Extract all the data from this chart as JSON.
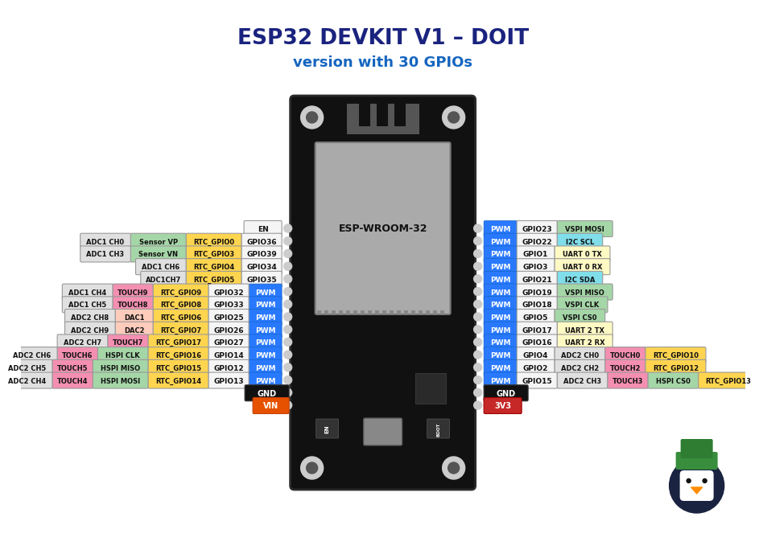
{
  "title": "ESP32 DEVKIT V1 – DOIT",
  "subtitle": "version with 30 GPIOs",
  "title_color": "#1a237e",
  "subtitle_color": "#1565c0",
  "bg_color": "#ffffff",
  "board_color": "#111111",
  "pwm_color": "#2979ff",
  "left_pins": [
    {
      "row": 0,
      "gpio": "EN",
      "tags": [],
      "tag_colors": [],
      "pwm": false
    },
    {
      "row": 1,
      "gpio": "GPIO36",
      "tags": [
        "RTC_GPIO0",
        "Sensor VP",
        "ADC1 CH0"
      ],
      "tag_colors": [
        "#ffd54f",
        "#a5d6a7",
        "#e0e0e0"
      ],
      "pwm": false
    },
    {
      "row": 2,
      "gpio": "GPIO39",
      "tags": [
        "RTC_GPIO3",
        "Sensor VN",
        "ADC1 CH3"
      ],
      "tag_colors": [
        "#ffd54f",
        "#a5d6a7",
        "#e0e0e0"
      ],
      "pwm": false
    },
    {
      "row": 3,
      "gpio": "GPIO34",
      "tags": [
        "RTC_GPIO4",
        "ADC1 CH6"
      ],
      "tag_colors": [
        "#ffd54f",
        "#e0e0e0"
      ],
      "pwm": false
    },
    {
      "row": 4,
      "gpio": "GPIO35",
      "tags": [
        "RTC_GPIO5",
        "ADC1CH7"
      ],
      "tag_colors": [
        "#ffd54f",
        "#e0e0e0"
      ],
      "pwm": false
    },
    {
      "row": 5,
      "gpio": "GPIO32",
      "tags": [
        "RTC_GPIO9",
        "TOUCH9",
        "ADC1 CH4"
      ],
      "tag_colors": [
        "#ffd54f",
        "#f48fb1",
        "#e0e0e0"
      ],
      "pwm": true
    },
    {
      "row": 6,
      "gpio": "GPIO33",
      "tags": [
        "RTC_GPIO8",
        "TOUCH8",
        "ADC1 CH5"
      ],
      "tag_colors": [
        "#ffd54f",
        "#f48fb1",
        "#e0e0e0"
      ],
      "pwm": true
    },
    {
      "row": 7,
      "gpio": "GPIO25",
      "tags": [
        "RTC_GPIO6",
        "DAC1",
        "ADC2 CH8"
      ],
      "tag_colors": [
        "#ffd54f",
        "#ffccbc",
        "#e0e0e0"
      ],
      "pwm": true
    },
    {
      "row": 8,
      "gpio": "GPIO26",
      "tags": [
        "RTC_GPIO7",
        "DAC2",
        "ADC2 CH9"
      ],
      "tag_colors": [
        "#ffd54f",
        "#ffccbc",
        "#e0e0e0"
      ],
      "pwm": true
    },
    {
      "row": 9,
      "gpio": "GPIO27",
      "tags": [
        "RTC_GPIO17",
        "TOUCH7",
        "ADC2 CH7"
      ],
      "tag_colors": [
        "#ffd54f",
        "#f48fb1",
        "#e0e0e0"
      ],
      "pwm": true
    },
    {
      "row": 10,
      "gpio": "GPIO14",
      "tags": [
        "RTC_GPIO16",
        "HSPI CLK",
        "TOUCH6",
        "ADC2 CH6"
      ],
      "tag_colors": [
        "#ffd54f",
        "#a5d6a7",
        "#f48fb1",
        "#e0e0e0"
      ],
      "pwm": true
    },
    {
      "row": 11,
      "gpio": "GPIO12",
      "tags": [
        "RTC_GPIO15",
        "HSPI MISO",
        "TOUCH5",
        "ADC2 CH5"
      ],
      "tag_colors": [
        "#ffd54f",
        "#a5d6a7",
        "#f48fb1",
        "#e0e0e0"
      ],
      "pwm": true
    },
    {
      "row": 12,
      "gpio": "GPIO13",
      "tags": [
        "RTC_GPIO14",
        "HSPI MOSI",
        "TOUCH4",
        "ADC2 CH4"
      ],
      "tag_colors": [
        "#ffd54f",
        "#a5d6a7",
        "#f48fb1",
        "#e0e0e0"
      ],
      "pwm": true
    },
    {
      "row": 13,
      "gpio": "GND",
      "tags": [],
      "tag_colors": [],
      "pwm": false,
      "special": "gnd"
    },
    {
      "row": 14,
      "gpio": "VIN",
      "tags": [],
      "tag_colors": [],
      "pwm": false,
      "special": "vin"
    }
  ],
  "right_pins": [
    {
      "row": 0,
      "gpio": "GPIO23",
      "tags": [
        "VSPI MOSI"
      ],
      "tag_colors": [
        "#a5d6a7"
      ],
      "pwm": true
    },
    {
      "row": 1,
      "gpio": "GPIO22",
      "tags": [
        "I2C SCL"
      ],
      "tag_colors": [
        "#80deea"
      ],
      "pwm": true
    },
    {
      "row": 2,
      "gpio": "GPIO1",
      "tags": [
        "UART 0 TX"
      ],
      "tag_colors": [
        "#fff9c4"
      ],
      "pwm": true
    },
    {
      "row": 3,
      "gpio": "GPIO3",
      "tags": [
        "UART 0 RX"
      ],
      "tag_colors": [
        "#fff9c4"
      ],
      "pwm": true
    },
    {
      "row": 4,
      "gpio": "GPIO21",
      "tags": [
        "I2C SDA"
      ],
      "tag_colors": [
        "#80deea"
      ],
      "pwm": true
    },
    {
      "row": 5,
      "gpio": "GPIO19",
      "tags": [
        "VSPI MISO"
      ],
      "tag_colors": [
        "#a5d6a7"
      ],
      "pwm": true
    },
    {
      "row": 6,
      "gpio": "GPIO18",
      "tags": [
        "VSPI CLK"
      ],
      "tag_colors": [
        "#a5d6a7"
      ],
      "pwm": true
    },
    {
      "row": 7,
      "gpio": "GPIO5",
      "tags": [
        "VSPI CS0"
      ],
      "tag_colors": [
        "#a5d6a7"
      ],
      "pwm": true
    },
    {
      "row": 8,
      "gpio": "GPIO17",
      "tags": [
        "UART 2 TX"
      ],
      "tag_colors": [
        "#fff9c4"
      ],
      "pwm": true
    },
    {
      "row": 9,
      "gpio": "GPIO16",
      "tags": [
        "UART 2 RX"
      ],
      "tag_colors": [
        "#fff9c4"
      ],
      "pwm": true
    },
    {
      "row": 10,
      "gpio": "GPIO4",
      "tags": [
        "ADC2 CH0",
        "TOUCH0",
        "RTC_GPIO10"
      ],
      "tag_colors": [
        "#e0e0e0",
        "#f48fb1",
        "#ffd54f"
      ],
      "pwm": true
    },
    {
      "row": 11,
      "gpio": "GPIO2",
      "tags": [
        "ADC2 CH2",
        "TOUCH2",
        "RTC_GPIO12"
      ],
      "tag_colors": [
        "#e0e0e0",
        "#f48fb1",
        "#ffd54f"
      ],
      "pwm": true
    },
    {
      "row": 12,
      "gpio": "GPIO15",
      "tags": [
        "ADC2 CH3",
        "TOUCH3",
        "HSPI CS0",
        "RTC_GPIO13"
      ],
      "tag_colors": [
        "#e0e0e0",
        "#f48fb1",
        "#a5d6a7",
        "#ffd54f"
      ],
      "pwm": true
    },
    {
      "row": 13,
      "gpio": "GND",
      "tags": [],
      "tag_colors": [],
      "pwm": false,
      "special": "gnd"
    },
    {
      "row": 14,
      "gpio": "3V3",
      "tags": [],
      "tag_colors": [],
      "pwm": false,
      "special": "3v3"
    }
  ]
}
